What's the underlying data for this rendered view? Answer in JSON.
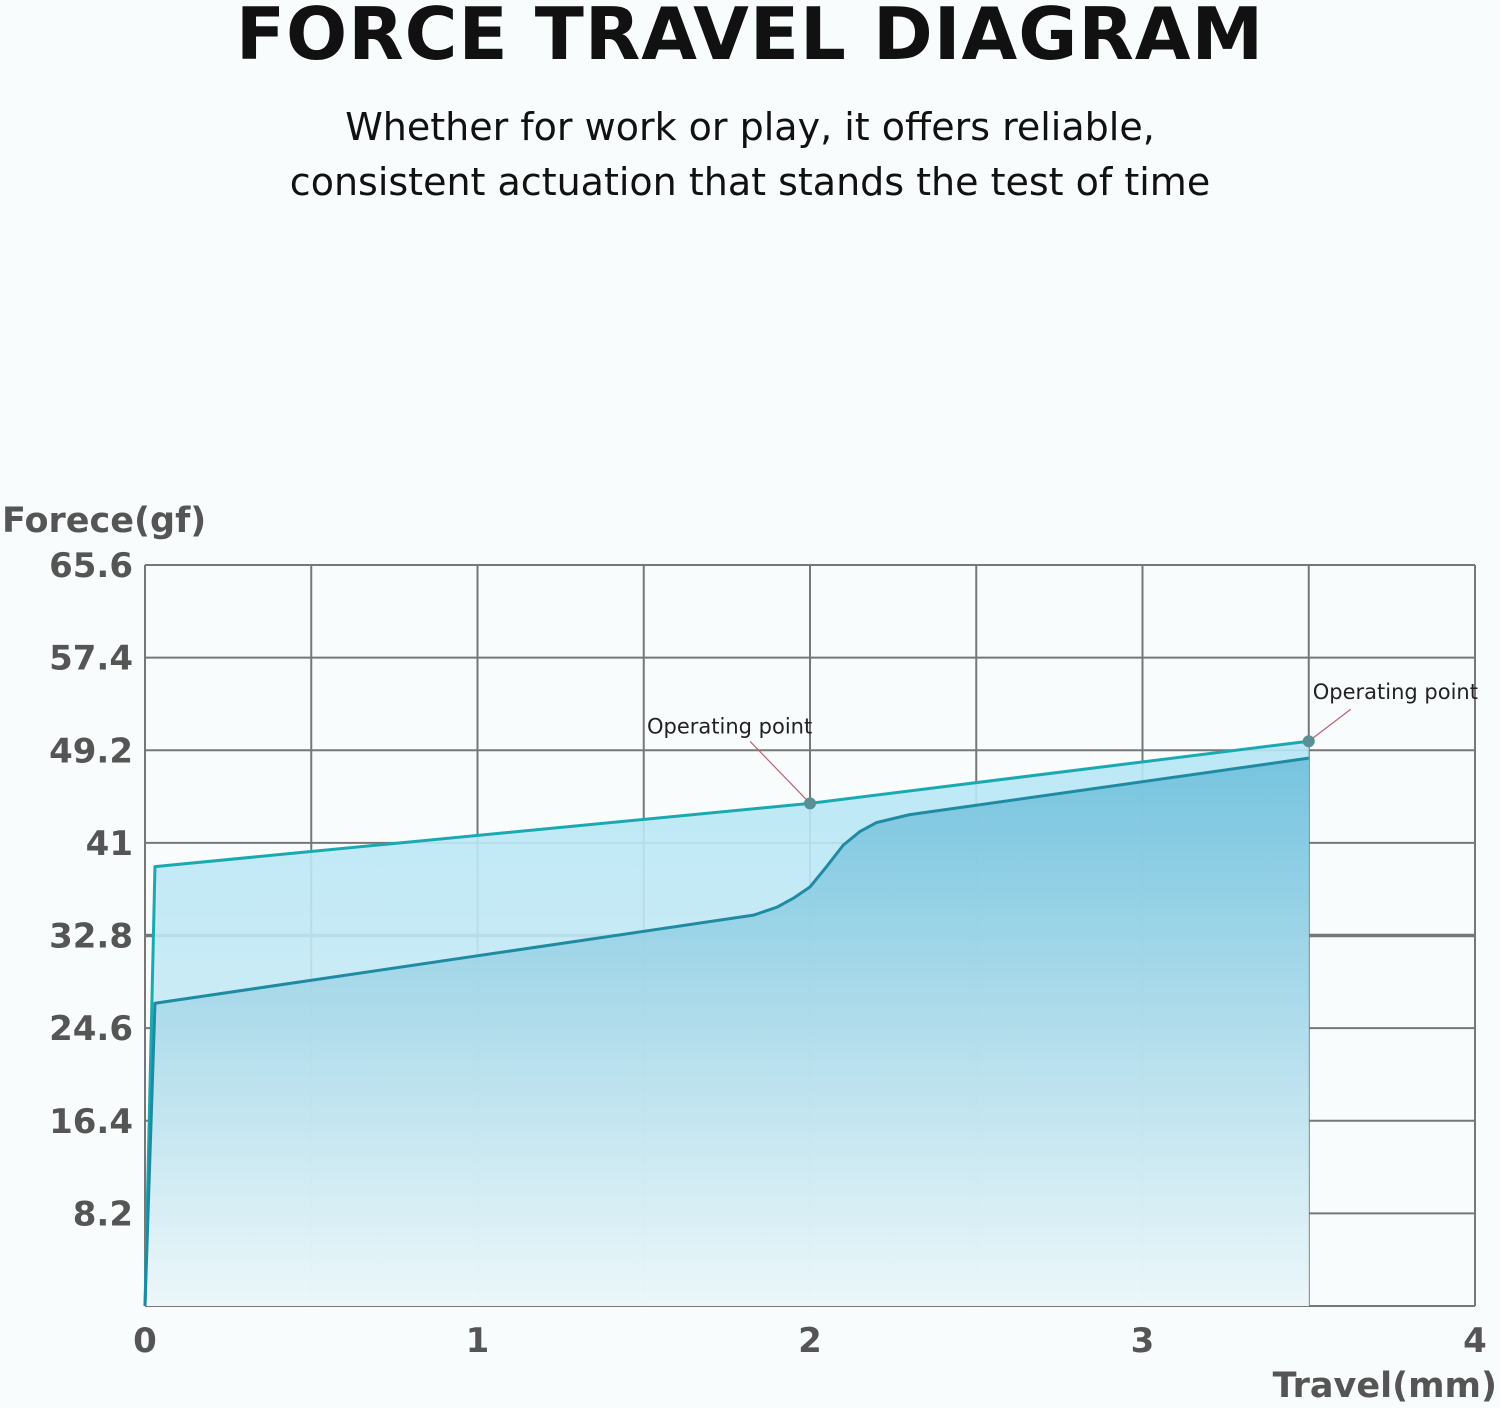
{
  "title": "FORCE TRAVEL DIAGRAM",
  "subtitle_lines": [
    "Whether for work or play, it offers reliable,",
    "consistent actuation that stands the test of time"
  ],
  "chart_data": {
    "type": "area",
    "xlabel": "Travel(mm)",
    "ylabel": "Forece(gf)",
    "xlim": [
      0,
      4
    ],
    "ylim": [
      0,
      65.6
    ],
    "xticks": [
      0,
      1,
      2,
      3,
      4
    ],
    "yticks": [
      8.2,
      16.4,
      24.6,
      32.8,
      41,
      49.2,
      57.4,
      65.6
    ],
    "ytick_labels": [
      "8.2",
      "16.4",
      "24.6",
      "32.8",
      "41",
      "49.2",
      "57.4",
      "65.6"
    ],
    "grid": true,
    "series": [
      {
        "points": [
          [
            0,
            0
          ],
          [
            0.03,
            38.9
          ],
          [
            2.0,
            44.5
          ],
          [
            3.5,
            50.0
          ]
        ],
        "color": "#1aa9b1"
      },
      {
        "points": [
          [
            0,
            0
          ],
          [
            0.03,
            26.8
          ],
          [
            1.83,
            34.6
          ],
          [
            1.9,
            35.3
          ],
          [
            1.95,
            36.1
          ],
          [
            2.0,
            37.1
          ],
          [
            2.05,
            38.9
          ],
          [
            2.1,
            40.8
          ],
          [
            2.15,
            42.0
          ],
          [
            2.2,
            42.8
          ],
          [
            2.3,
            43.5
          ],
          [
            3.5,
            48.5
          ]
        ],
        "color": "#1f8ba2"
      }
    ],
    "annotations": [
      {
        "text": "Operating point",
        "x": 2.0,
        "y": 44.5
      },
      {
        "text": "Operating point",
        "x": 3.5,
        "y": 50.0
      }
    ]
  }
}
